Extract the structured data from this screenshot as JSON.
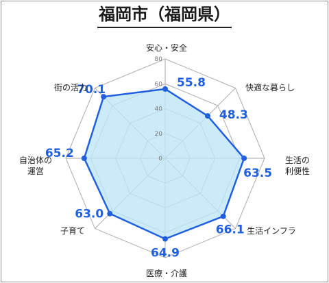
{
  "title": "福岡市（福岡県）",
  "chart_data": {
    "type": "radar",
    "title": "福岡市（福岡県）",
    "axis_range": [
      0,
      80
    ],
    "ticks": [
      "0",
      "20",
      "40",
      "60",
      "80"
    ],
    "categories": [
      "安心・安全",
      "快適な暮らし",
      "生活の利便性",
      "生活インフラ",
      "医療・介護",
      "子育て",
      "自治体の運営",
      "街の活力"
    ],
    "category_lines": [
      [
        "安心・安全"
      ],
      [
        "快適な暮らし"
      ],
      [
        "生活の",
        "利便性"
      ],
      [
        "生活インフラ"
      ],
      [
        "医療・介護"
      ],
      [
        "子育て"
      ],
      [
        "自治体の",
        "運営"
      ],
      [
        "街の活力"
      ]
    ],
    "values": [
      55.8,
      48.3,
      63.5,
      66.1,
      64.9,
      63.0,
      65.2,
      70.1
    ],
    "value_labels": [
      "55.8",
      "48.3",
      "63.5",
      "66.1",
      "64.9",
      "63.0",
      "65.2",
      "70.1"
    ],
    "colors": {
      "series_line": "#1f5fe0",
      "series_fill": "#bfe6f7",
      "value_text": "#1f5fe0",
      "grid": "#aaaaaa",
      "label_text": "#222222"
    }
  }
}
